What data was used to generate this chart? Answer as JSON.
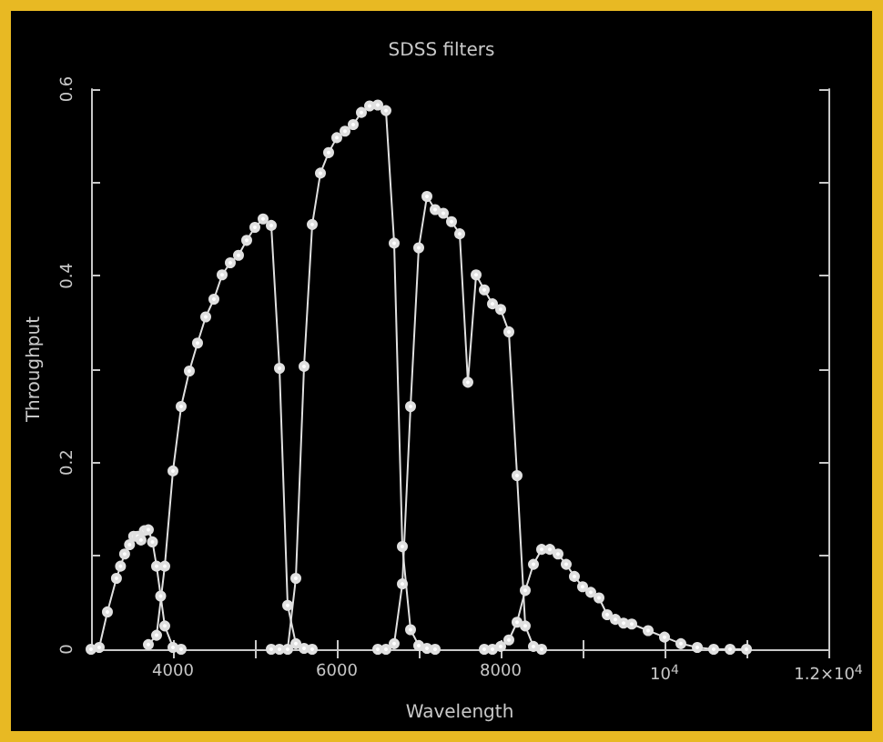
{
  "chart_data": {
    "type": "line",
    "title": "SDSS filters",
    "xlabel": "Wavelength",
    "ylabel": "Throughput",
    "xlim": [
      3000,
      12000
    ],
    "ylim": [
      0,
      0.6
    ],
    "xticks": [
      4000,
      {
        "value": 5000,
        "label": null
      },
      6000,
      {
        "value": 7000,
        "label": null
      },
      8000,
      {
        "value": 9000,
        "label": null
      },
      {
        "value": 10000,
        "label": "10$^{4}$"
      },
      {
        "value": 11000,
        "label": null
      },
      {
        "value": 12000,
        "label": "1.2×10$^{4}$"
      }
    ],
    "yticks": [
      0,
      {
        "value": 0.1,
        "label": null
      },
      0.2,
      {
        "value": 0.3,
        "label": null
      },
      0.4,
      {
        "value": 0.5,
        "label": null
      },
      0.6
    ],
    "marker": "circle",
    "line_style": "solid",
    "grid": false,
    "series": [
      {
        "color": "#e0e0e0",
        "x": [
          3000,
          3100,
          3200,
          3310,
          3360,
          3410,
          3470,
          3520,
          3570,
          3610,
          3650,
          3700,
          3750,
          3800,
          3850,
          3900,
          4000,
          4100
        ],
        "values": [
          0,
          0.002,
          0.04,
          0.076,
          0.089,
          0.102,
          0.112,
          0.121,
          0.121,
          0.117,
          0.127,
          0.128,
          0.115,
          0.089,
          0.057,
          0.025,
          0.002,
          0
        ]
      },
      {
        "color": "#e0e0e0",
        "x": [
          3700,
          3800,
          3900,
          4000,
          4100,
          4200,
          4300,
          4400,
          4500,
          4600,
          4700,
          4800,
          4900,
          5000,
          5100,
          5200,
          5300,
          5400,
          5500,
          5600,
          5700
        ],
        "values": [
          0.005,
          0.015,
          0.089,
          0.191,
          0.26,
          0.298,
          0.328,
          0.356,
          0.375,
          0.401,
          0.414,
          0.422,
          0.438,
          0.452,
          0.461,
          0.454,
          0.301,
          0.047,
          0.006,
          0.001,
          0
        ]
      },
      {
        "color": "#e0e0e0",
        "x": [
          5200,
          5300,
          5400,
          5500,
          5600,
          5700,
          5800,
          5900,
          6000,
          6100,
          6200,
          6300,
          6400,
          6500,
          6600,
          6700,
          6800,
          6900,
          7000,
          7100,
          7200
        ],
        "values": [
          0,
          0,
          0,
          0.076,
          0.303,
          0.455,
          0.51,
          0.532,
          0.548,
          0.555,
          0.562,
          0.575,
          0.582,
          0.583,
          0.577,
          0.435,
          0.11,
          0.021,
          0.004,
          0.001,
          0
        ]
      },
      {
        "color": "#e0e0e0",
        "x": [
          6500,
          6600,
          6700,
          6800,
          6900,
          7000,
          7100,
          7200,
          7300,
          7400,
          7500,
          7600,
          7700,
          7800,
          7900,
          8000,
          8100,
          8200,
          8300,
          8400,
          8500
        ],
        "values": [
          0,
          0,
          0.006,
          0.07,
          0.26,
          0.43,
          0.485,
          0.471,
          0.467,
          0.458,
          0.445,
          0.286,
          0.401,
          0.385,
          0.37,
          0.364,
          0.34,
          0.186,
          0.025,
          0.003,
          0
        ]
      },
      {
        "color": "#e0e0e0",
        "x": [
          7800,
          7900,
          8000,
          8100,
          8200,
          8300,
          8400,
          8500,
          8600,
          8700,
          8800,
          8900,
          9000,
          9100,
          9200,
          9300,
          9400,
          9500,
          9600,
          9800,
          10000,
          10200,
          10400,
          10600,
          10800,
          11000
        ],
        "values": [
          0,
          0,
          0.003,
          0.01,
          0.029,
          0.063,
          0.091,
          0.107,
          0.107,
          0.102,
          0.091,
          0.078,
          0.067,
          0.061,
          0.055,
          0.037,
          0.032,
          0.028,
          0.027,
          0.02,
          0.013,
          0.006,
          0.002,
          0,
          0,
          0
        ]
      }
    ]
  }
}
